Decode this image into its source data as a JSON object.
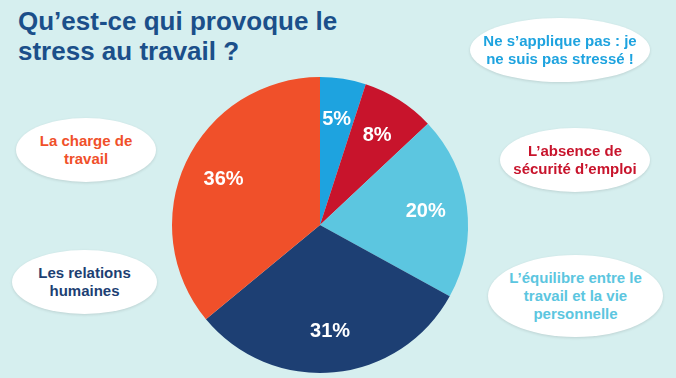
{
  "chart_data": {
    "type": "pie",
    "title": "Qu’est-ce qui provoque le stress au travail ?",
    "categories": [
      "Ne s’applique pas : je ne suis pas stressé !",
      "L’absence de sécurité d’emploi",
      "L’équilibre entre le travail et la vie personnelle",
      "Les relations humaines",
      "La charge de travail"
    ],
    "values": [
      5,
      8,
      20,
      31,
      36
    ],
    "value_labels": [
      "5%",
      "8%",
      "20%",
      "31%",
      "36%"
    ],
    "colors": [
      "#1ea3df",
      "#c8142c",
      "#5cc6e0",
      "#1d3f73",
      "#f0502a"
    ],
    "data_labels": true
  }
}
